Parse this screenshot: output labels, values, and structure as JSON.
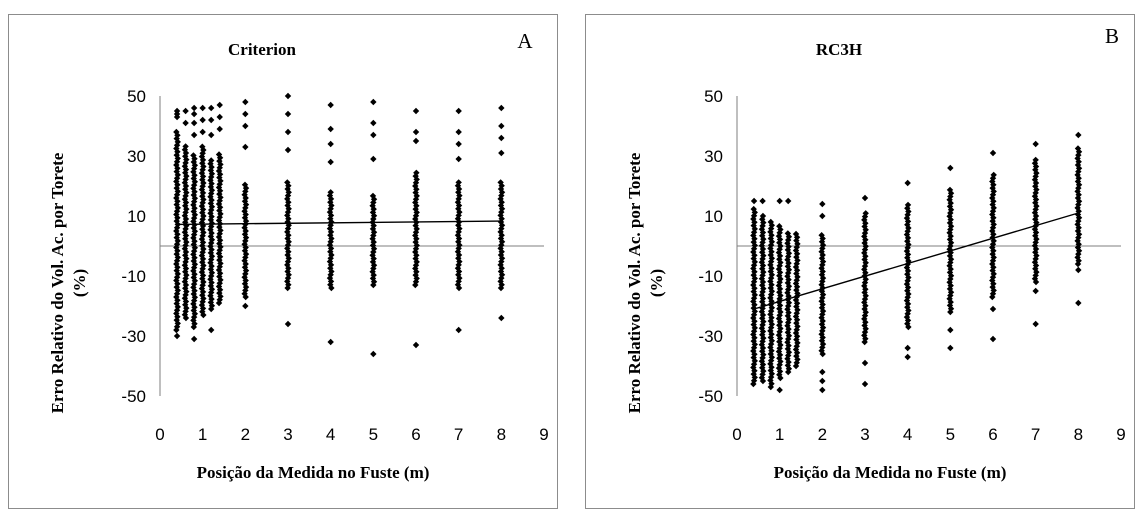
{
  "chart_data": [
    {
      "type": "scatter",
      "panel_label": "A",
      "title": "Criterion",
      "xlabel": "Posição da Medida no Fuste (m)",
      "ylabel": "Erro Relativo do Vol. Ac. por Torete (%)",
      "ylabel_lines": [
        "Erro Relativo do Vol. Ac. por Torete",
        "(%)"
      ],
      "xlim": [
        0,
        9
      ],
      "ylim": [
        -50,
        50
      ],
      "xticks": [
        0,
        1,
        2,
        3,
        4,
        5,
        6,
        7,
        8,
        9
      ],
      "yticks": [
        -50,
        -30,
        -10,
        10,
        30,
        50
      ],
      "grid": false,
      "reference_line_y": 0,
      "trendline": {
        "x": [
          0.4,
          8
        ],
        "y": [
          7.2,
          8.3
        ]
      },
      "marker": "diamond",
      "color": "#000000",
      "point_columns": [
        {
          "x": 0.4,
          "y_range": [
            -28,
            38
          ],
          "outliers": [
            45,
            44,
            43,
            -30
          ]
        },
        {
          "x": 0.6,
          "y_range": [
            -24,
            34
          ],
          "outliers": [
            45,
            41
          ]
        },
        {
          "x": 0.8,
          "y_range": [
            -27,
            31
          ],
          "outliers": [
            46,
            44,
            41,
            37,
            -31
          ]
        },
        {
          "x": 1.0,
          "y_range": [
            -23,
            34
          ],
          "outliers": [
            46,
            42,
            38
          ]
        },
        {
          "x": 1.2,
          "y_range": [
            -21,
            29
          ],
          "outliers": [
            46,
            42,
            37,
            -28
          ]
        },
        {
          "x": 1.4,
          "y_range": [
            -19,
            31
          ],
          "outliers": [
            47,
            43,
            39
          ]
        },
        {
          "x": 2.0,
          "y_range": [
            -17,
            21
          ],
          "outliers": [
            48,
            44,
            40,
            33,
            -20
          ]
        },
        {
          "x": 3.0,
          "y_range": [
            -14,
            22
          ],
          "outliers": [
            50,
            44,
            38,
            32,
            -26
          ]
        },
        {
          "x": 4.0,
          "y_range": [
            -14,
            18
          ],
          "outliers": [
            47,
            39,
            34,
            28,
            -32
          ]
        },
        {
          "x": 5.0,
          "y_range": [
            -13,
            17
          ],
          "outliers": [
            48,
            41,
            37,
            29,
            -36
          ]
        },
        {
          "x": 6.0,
          "y_range": [
            -13,
            25
          ],
          "outliers": [
            45,
            38,
            35,
            -33
          ]
        },
        {
          "x": 7.0,
          "y_range": [
            -14,
            22
          ],
          "outliers": [
            45,
            38,
            34,
            29,
            -28
          ]
        },
        {
          "x": 8.0,
          "y_range": [
            -14,
            22
          ],
          "outliers": [
            46,
            40,
            36,
            31,
            -24
          ]
        }
      ]
    },
    {
      "type": "scatter",
      "panel_label": "B",
      "title": "RC3H",
      "xlabel": "Posição da Medida no Fuste (m)",
      "ylabel": "Erro Relativo do Vol. Ac. por Torete (%)",
      "ylabel_lines": [
        "Erro Relativo do Vol. Ac. por Torete",
        "(%)"
      ],
      "xlim": [
        0,
        9
      ],
      "ylim": [
        -50,
        50
      ],
      "xticks": [
        0,
        1,
        2,
        3,
        4,
        5,
        6,
        7,
        8,
        9
      ],
      "yticks": [
        -50,
        -30,
        -10,
        10,
        30,
        50
      ],
      "grid": false,
      "reference_line_y": 0,
      "trendline": {
        "x": [
          0.4,
          8
        ],
        "y": [
          -21,
          11
        ]
      },
      "marker": "diamond",
      "color": "#000000",
      "point_columns": [
        {
          "x": 0.4,
          "y_range": [
            -46,
            13
          ],
          "outliers": [
            15
          ]
        },
        {
          "x": 0.6,
          "y_range": [
            -45,
            10
          ],
          "outliers": [
            15
          ]
        },
        {
          "x": 0.8,
          "y_range": [
            -47,
            8
          ],
          "outliers": []
        },
        {
          "x": 1.0,
          "y_range": [
            -44,
            7
          ],
          "outliers": [
            15,
            -48
          ]
        },
        {
          "x": 1.2,
          "y_range": [
            -42,
            5
          ],
          "outliers": [
            15
          ]
        },
        {
          "x": 1.4,
          "y_range": [
            -40,
            4
          ],
          "outliers": []
        },
        {
          "x": 2.0,
          "y_range": [
            -36,
            4
          ],
          "outliers": [
            14,
            10,
            -42,
            -45,
            -48
          ]
        },
        {
          "x": 3.0,
          "y_range": [
            -32,
            11
          ],
          "outliers": [
            16,
            -39,
            -46
          ]
        },
        {
          "x": 4.0,
          "y_range": [
            -27,
            14
          ],
          "outliers": [
            21,
            -34,
            -37
          ]
        },
        {
          "x": 5.0,
          "y_range": [
            -22,
            19
          ],
          "outliers": [
            26,
            -28,
            -34
          ]
        },
        {
          "x": 6.0,
          "y_range": [
            -17,
            24
          ],
          "outliers": [
            31,
            -21,
            -31
          ]
        },
        {
          "x": 7.0,
          "y_range": [
            -12,
            29
          ],
          "outliers": [
            34,
            -15,
            -26
          ]
        },
        {
          "x": 8.0,
          "y_range": [
            -6,
            33
          ],
          "outliers": [
            37,
            -8,
            -19
          ]
        }
      ]
    }
  ]
}
